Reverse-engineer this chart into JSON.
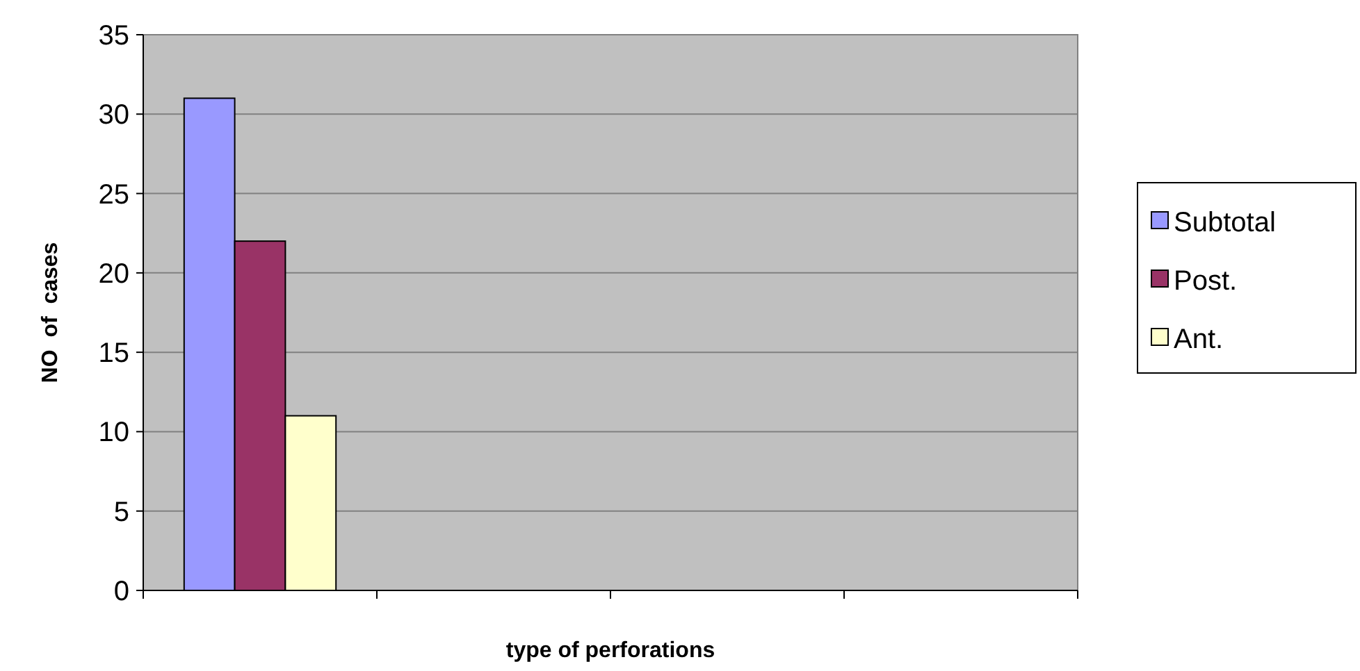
{
  "chart_data": {
    "type": "bar",
    "xlabel": "type of perforations",
    "ylabel": "NO  of  cases",
    "categories": [
      null,
      null,
      null,
      null
    ],
    "series": [
      {
        "name": "Subtotal",
        "color": "#9999ff",
        "values": [
          31,
          null,
          null,
          null
        ]
      },
      {
        "name": "Post.",
        "color": "#993366",
        "values": [
          22,
          null,
          null,
          null
        ]
      },
      {
        "name": "Ant.",
        "color": "#ffffcc",
        "values": [
          11,
          null,
          null,
          null
        ]
      }
    ],
    "ylim": [
      0,
      35
    ],
    "yticks": [
      0,
      5,
      10,
      15,
      20,
      25,
      30,
      35
    ],
    "grid": "y",
    "legend": "right"
  }
}
